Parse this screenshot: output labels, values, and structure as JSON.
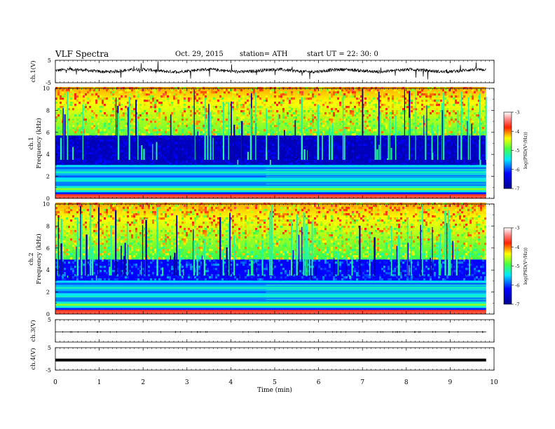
{
  "header": {
    "title": "VLF  Spectra",
    "date": "Oct. 29, 2015",
    "station": "station= ATH",
    "start": "start  UT =   22: 30: 0"
  },
  "chart_data": [
    {
      "type": "line",
      "name": "ch1-waveform",
      "ylabel": "ch.1(V)",
      "ylim": [
        -5,
        5
      ],
      "yticks": [
        "5",
        "-5"
      ],
      "x_range": [
        0,
        9.82
      ],
      "baseline": 0.4,
      "color": "#000000"
    },
    {
      "type": "heatmap",
      "name": "ch1-spectrogram",
      "ylabel_channel": "ch.1",
      "ylabel": "Frequency  (kHz)",
      "ylim": [
        0,
        10
      ],
      "yticks": [
        "0",
        "2",
        "4",
        "6",
        "8",
        "10"
      ],
      "x_range": [
        0,
        9.82
      ],
      "transition_min": 4.8,
      "colorbar": {
        "label": "log(PSD(V²/Hz))",
        "range": [
          -7,
          -3
        ],
        "ticks": [
          "-3",
          "-4",
          "-5",
          "-6",
          "-7"
        ]
      }
    },
    {
      "type": "heatmap",
      "name": "ch2-spectrogram",
      "ylabel_channel": "ch.2",
      "ylabel": "Frequency  (kHz)",
      "ylim": [
        0,
        10
      ],
      "yticks": [
        "0",
        "2",
        "4",
        "6",
        "8",
        "10"
      ],
      "x_range": [
        0,
        9.82
      ],
      "transition_min": 4.8,
      "colorbar": {
        "label": "log(PSD(V²/Hz))",
        "range": [
          -7,
          -3
        ],
        "ticks": [
          "-3",
          "-4",
          "-5",
          "-6",
          "-7"
        ]
      }
    },
    {
      "type": "line",
      "name": "ch3-waveform",
      "ylabel": "ch.3(V)",
      "ylim": [
        -5,
        5
      ],
      "yticks": [
        "5"
      ],
      "x_range": [
        0,
        9.82
      ],
      "baseline": -0.5,
      "color": "#000000"
    },
    {
      "type": "line",
      "name": "ch4-waveform",
      "ylabel": "ch.4(V)",
      "ylim": [
        -5,
        5
      ],
      "yticks": [
        "5",
        "-5"
      ],
      "x_range": [
        0,
        9.82
      ],
      "baseline": -0.5,
      "color": "#000000"
    }
  ],
  "xaxis": {
    "label": "Time  (min)",
    "range": [
      0,
      10
    ],
    "ticks": [
      "0",
      "1",
      "2",
      "3",
      "4",
      "5",
      "6",
      "7",
      "8",
      "9",
      "10"
    ]
  }
}
